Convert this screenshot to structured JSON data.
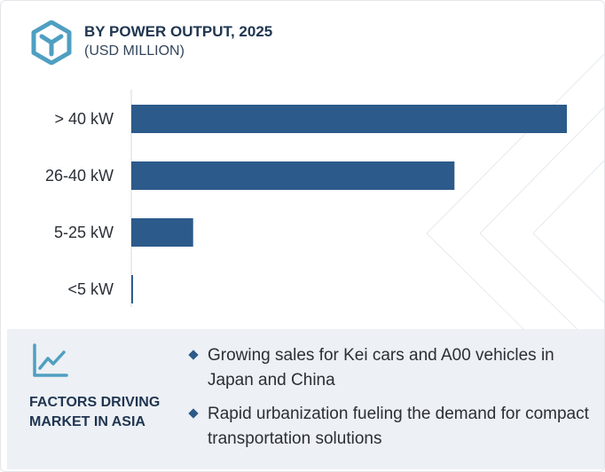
{
  "header": {
    "title": "BY POWER OUTPUT, 2025",
    "subtitle": "(USD MILLION)"
  },
  "colors": {
    "bar": "#2c5a8a",
    "title": "#1f3550",
    "footer_bg": "#edf0f4",
    "accent": "#4f9fc1"
  },
  "icons": {
    "logo": "cube-logo-icon",
    "factors": "line-chart-icon",
    "bullet": "diamond-bullet-icon"
  },
  "chart_data": {
    "type": "bar",
    "orientation": "horizontal",
    "title": "BY POWER OUTPUT, 2025",
    "subtitle": "(USD MILLION)",
    "categories": [
      "> 40 kW",
      "26-40 kW",
      "5-25 kW",
      "<5 kW"
    ],
    "values": [
      100,
      74.2,
      14.2,
      0.4
    ],
    "value_scale": "relative (no axis values printed)",
    "xlim": [
      0,
      100
    ],
    "grid": false,
    "legend": "none"
  },
  "footer": {
    "factors_label": "FACTORS DRIVING MARKET IN ASIA",
    "bullets": [
      "Growing sales for Kei cars and A00 vehicles in Japan and China",
      "Rapid urbanization fueling the demand for compact transportation solutions"
    ]
  }
}
